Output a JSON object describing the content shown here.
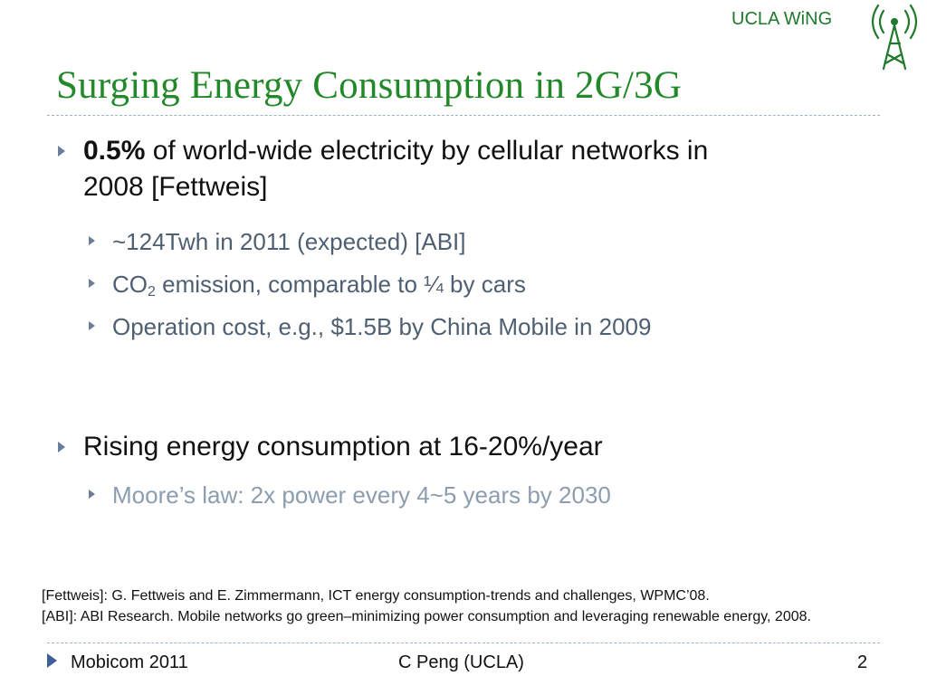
{
  "logo": {
    "text": "UCLA WiNG",
    "icon": "radio-tower-icon"
  },
  "slide": {
    "title": "Surging Energy Consumption in 2G/3G",
    "bullets": [
      {
        "bold": "0.5%",
        "line1_rest": " of world-wide electricity by cellular networks in",
        "line2": "2008 [Fettweis]",
        "subs": [
          {
            "text": "~124Twh in 2011 (expected) [ABI]"
          },
          {
            "pre": "CO",
            "sub": "2",
            "post": " emission, comparable to ¼ by cars"
          },
          {
            "text": "Operation cost, e.g.,  $1.5B by China Mobile in 2009"
          }
        ]
      },
      {
        "text": "Rising energy consumption at 16-20%/year",
        "subs": [
          {
            "text": "Moore’s law: 2x power every 4~5 years by 2030"
          }
        ]
      }
    ],
    "references": [
      "[Fettweis]: G. Fettweis and E. Zimmermann, ICT energy consumption-trends and challenges, WPMC’08.",
      "[ABI]: ABI Research. Mobile networks go green–minimizing power consumption and leveraging renewable energy, 2008."
    ]
  },
  "footer": {
    "left": "Mobicom 2011",
    "center": "C Peng (UCLA)",
    "page": "2"
  },
  "colors": {
    "title": "#22882a",
    "logo": "#1f7a2c",
    "bullet": "#6a7d99",
    "sub_text": "#4f5f72",
    "sub_text_light": "#8c9db0"
  }
}
